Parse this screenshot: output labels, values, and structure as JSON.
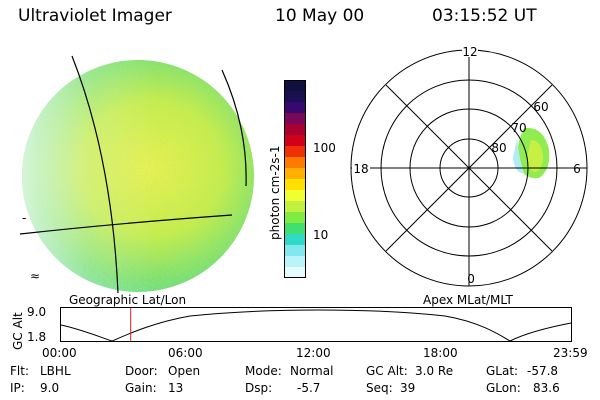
{
  "header": {
    "instrument": "Ultraviolet Imager",
    "date": "10 May 00",
    "time": "03:15:52 UT"
  },
  "earth_image": {
    "caption": "Geographic Lat/Lon",
    "tick_marks": [
      "-",
      "≈"
    ]
  },
  "colorbar": {
    "label": "photon cm-2s-1",
    "ticks": [
      "100",
      "10"
    ],
    "colors": [
      "#101040",
      "#181050",
      "#380870",
      "#7a0858",
      "#a80030",
      "#d00018",
      "#f03008",
      "#ff7a00",
      "#ffb000",
      "#ffe000",
      "#f0ff30",
      "#c0f040",
      "#80ec40",
      "#40e070",
      "#30d8c8",
      "#80e8f0",
      "#b8f4fa",
      "#e8fcff"
    ]
  },
  "polar_plot": {
    "caption": "Apex MLat/MLT",
    "mlt_labels": [
      "12",
      "18",
      "6",
      "0"
    ],
    "lat_labels": [
      "60",
      "70",
      "80"
    ]
  },
  "altitude_plot": {
    "ylabel": "GC Alt",
    "yticks": [
      "9.0",
      "1.8"
    ],
    "xticks": [
      "00:00",
      "06:00",
      "12:00",
      "18:00",
      "23:59"
    ],
    "current_time_fraction": 0.138,
    "marker_color": "#e02020"
  },
  "status": {
    "flt_label": "Flt:",
    "flt_value": "LBHL",
    "ip_label": "IP:",
    "ip_value": "9.0",
    "door_label": "Door:",
    "door_value": "Open",
    "gain_label": "Gain:",
    "gain_value": "13",
    "mode_label": "Mode:",
    "mode_value": "Normal",
    "dsp_label": "Dsp:",
    "dsp_value": "-5.7",
    "gcalt_label": "GC Alt:",
    "gcalt_value": "3.0 Re",
    "seq_label": "Seq:",
    "seq_value": "39",
    "glat_label": "GLat:",
    "glat_value": "-57.8",
    "glon_label": "GLon:",
    "glon_value": "83.6"
  }
}
